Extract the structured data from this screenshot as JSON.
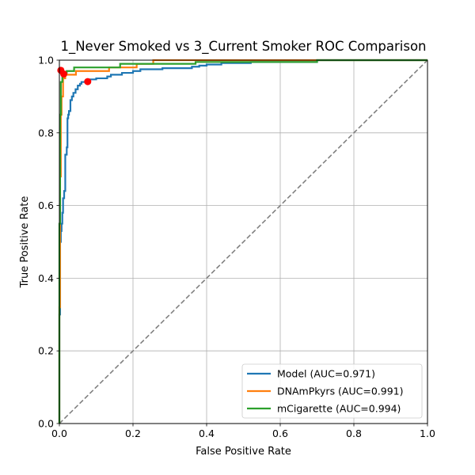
{
  "chart_data": {
    "type": "line",
    "title": "1_Never Smoked vs 3_Current Smoker ROC Comparison",
    "xlabel": "False Positive Rate",
    "ylabel": "True Positive Rate",
    "xlim": [
      0,
      1
    ],
    "ylim": [
      0,
      1
    ],
    "xticks": [
      "0.0",
      "0.2",
      "0.4",
      "0.6",
      "0.8",
      "1.0"
    ],
    "yticks": [
      "0.0",
      "0.2",
      "0.4",
      "0.6",
      "0.8",
      "1.0"
    ],
    "grid": true,
    "legend_position": "lower-right",
    "series": [
      {
        "name": "Model (AUC=0.971)",
        "color": "#1f77b4",
        "x": [
          0,
          0,
          0.002,
          0.002,
          0.004,
          0.004,
          0.006,
          0.006,
          0.008,
          0.008,
          0.01,
          0.01,
          0.013,
          0.013,
          0.016,
          0.016,
          0.02,
          0.02,
          0.022,
          0.022,
          0.024,
          0.024,
          0.026,
          0.026,
          0.03,
          0.03,
          0.034,
          0.034,
          0.038,
          0.038,
          0.044,
          0.044,
          0.05,
          0.05,
          0.056,
          0.056,
          0.06,
          0.06,
          0.066,
          0.066,
          0.072,
          0.072,
          0.08,
          0.08,
          0.1,
          0.1,
          0.13,
          0.13,
          0.14,
          0.14,
          0.17,
          0.17,
          0.2,
          0.2,
          0.22,
          0.22,
          0.28,
          0.28,
          0.36,
          0.36,
          0.38,
          0.38,
          0.4,
          0.4,
          0.44,
          0.44,
          0.52,
          0.52,
          0.7,
          0.7,
          1.0
        ],
        "y": [
          0,
          0.3,
          0.3,
          0.5,
          0.5,
          0.53,
          0.53,
          0.55,
          0.55,
          0.58,
          0.58,
          0.62,
          0.62,
          0.64,
          0.64,
          0.74,
          0.74,
          0.76,
          0.76,
          0.84,
          0.84,
          0.85,
          0.85,
          0.86,
          0.86,
          0.89,
          0.89,
          0.9,
          0.9,
          0.91,
          0.91,
          0.92,
          0.92,
          0.93,
          0.93,
          0.935,
          0.935,
          0.94,
          0.94,
          0.94,
          0.94,
          0.945,
          0.945,
          0.947,
          0.947,
          0.95,
          0.95,
          0.955,
          0.955,
          0.96,
          0.96,
          0.965,
          0.965,
          0.97,
          0.97,
          0.975,
          0.975,
          0.978,
          0.978,
          0.982,
          0.982,
          0.985,
          0.985,
          0.988,
          0.988,
          0.992,
          0.992,
          0.995,
          0.995,
          1.0,
          1.0
        ],
        "marker": [
          0.077,
          0.941
        ]
      },
      {
        "name": "DNAmPkyrs (AUC=0.991)",
        "color": "#ff7f0e",
        "x": [
          0,
          0,
          0.002,
          0.002,
          0.004,
          0.004,
          0.006,
          0.006,
          0.01,
          0.01,
          0.016,
          0.016,
          0.022,
          0.022,
          0.045,
          0.045,
          0.135,
          0.135,
          0.21,
          0.21,
          0.255,
          0.255,
          1.0
        ],
        "y": [
          0,
          0.32,
          0.32,
          0.68,
          0.68,
          0.85,
          0.85,
          0.9,
          0.9,
          0.95,
          0.95,
          0.96,
          0.96,
          0.96,
          0.96,
          0.97,
          0.97,
          0.98,
          0.98,
          0.99,
          0.99,
          1.0,
          1.0
        ],
        "marker": [
          0.012,
          0.962
        ]
      },
      {
        "name": "mCigarette (AUC=0.994)",
        "color": "#2ca02c",
        "x": [
          0,
          0,
          0.002,
          0.002,
          0.004,
          0.004,
          0.008,
          0.008,
          0.012,
          0.012,
          0.02,
          0.02,
          0.04,
          0.04,
          0.165,
          0.165,
          0.37,
          0.37,
          0.7,
          0.7,
          1.0
        ],
        "y": [
          0,
          0.55,
          0.55,
          0.85,
          0.85,
          0.94,
          0.94,
          0.96,
          0.96,
          0.965,
          0.965,
          0.97,
          0.97,
          0.98,
          0.98,
          0.99,
          0.99,
          0.995,
          0.995,
          1.0,
          1.0
        ],
        "marker": [
          0.004,
          0.972
        ]
      }
    ],
    "chance_line": {
      "color": "#808080",
      "x": [
        0,
        1
      ],
      "y": [
        0,
        1
      ]
    },
    "marker_color": "#ff0000"
  }
}
